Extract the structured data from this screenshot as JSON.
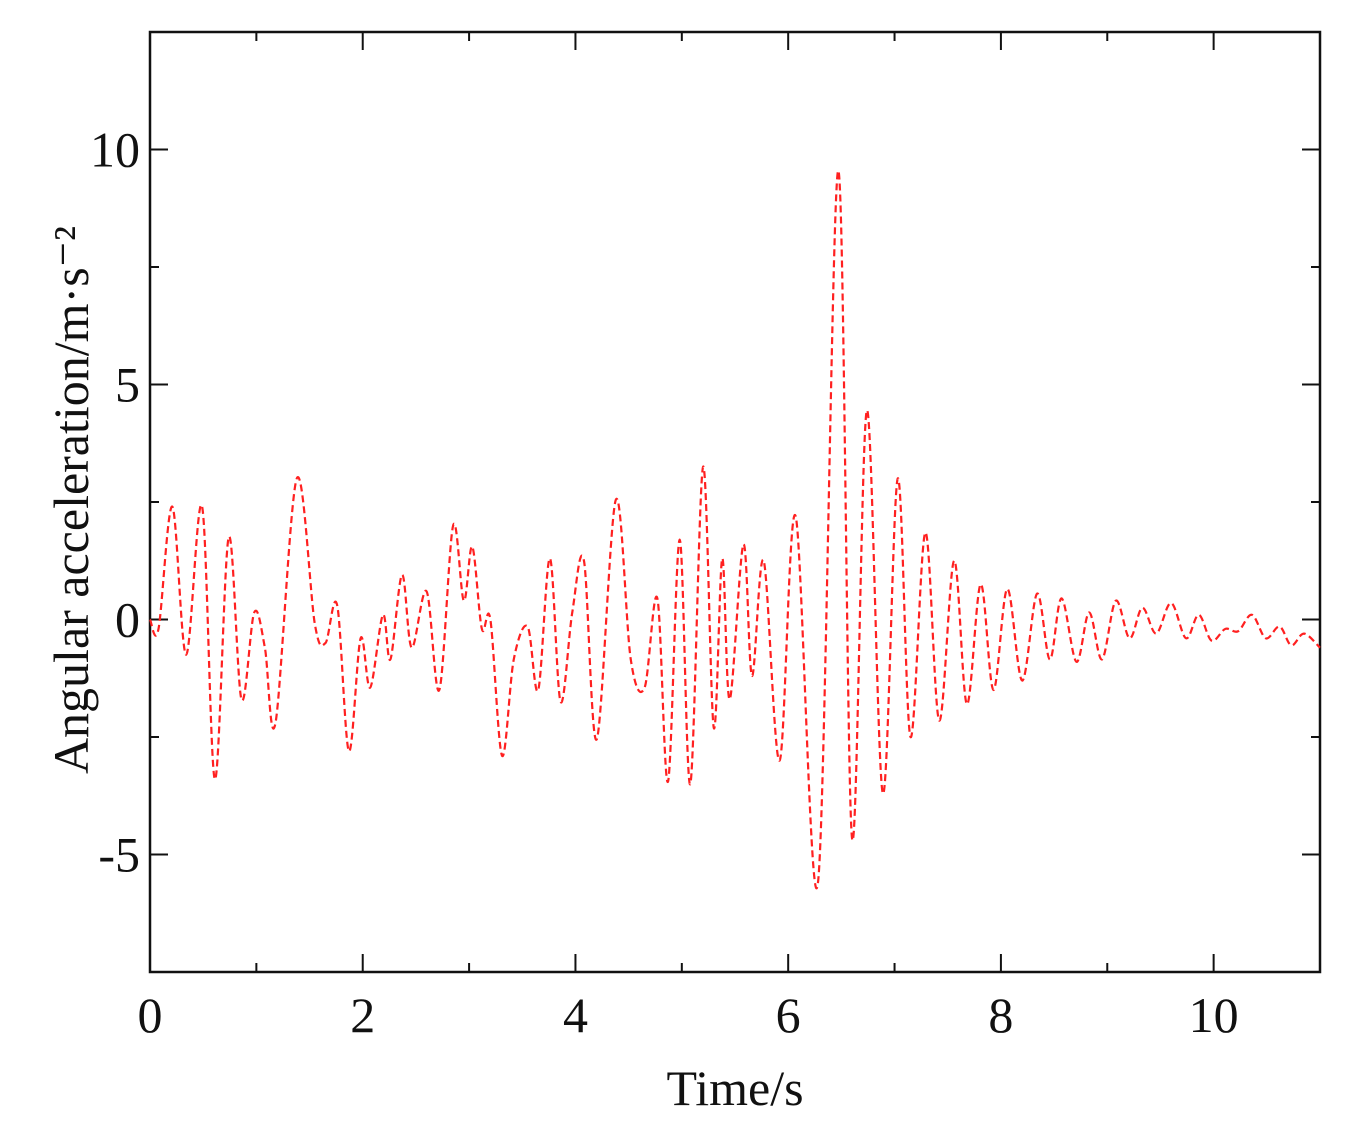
{
  "chart_data": {
    "type": "line",
    "xlabel": "Time/s",
    "ylabel": "Angular acceleration/m·s⁻²",
    "xlim": [
      0,
      11
    ],
    "xticks": [
      0,
      2,
      4,
      6,
      8,
      10
    ],
    "ylim": [
      -7.5,
      12.5
    ],
    "yticks": [
      -5,
      0,
      5,
      10
    ],
    "series": [
      {
        "color": "#ff2020",
        "dashed": true,
        "x": [
          0,
          0.08,
          0.21,
          0.34,
          0.49,
          0.61,
          0.74,
          0.86,
          0.98,
          1.08,
          1.18,
          1.38,
          1.55,
          1.65,
          1.76,
          1.87,
          1.98,
          2.07,
          2.19,
          2.26,
          2.37,
          2.46,
          2.6,
          2.72,
          2.85,
          2.95,
          3.03,
          3.12,
          3.2,
          3.31,
          3.42,
          3.55,
          3.65,
          3.76,
          3.86,
          3.97,
          4.08,
          4.2,
          4.38,
          4.52,
          4.65,
          4.77,
          4.87,
          4.98,
          5.08,
          5.2,
          5.3,
          5.38,
          5.45,
          5.58,
          5.66,
          5.77,
          5.92,
          6.07,
          6.28,
          6.47,
          6.6,
          6.74,
          6.89,
          7.03,
          7.15,
          7.29,
          7.42,
          7.56,
          7.68,
          7.81,
          7.93,
          8.06,
          8.2,
          8.34,
          8.46,
          8.57,
          8.71,
          8.83,
          8.95,
          9.08,
          9.21,
          9.33,
          9.46,
          9.6,
          9.74,
          9.86,
          9.98,
          10.11,
          10.23,
          10.36,
          10.49,
          10.62,
          10.73,
          10.85,
          11
        ],
        "values": [
          0,
          -0.2,
          2.4,
          -0.75,
          2.4,
          -3.4,
          1.75,
          -1.7,
          0.15,
          -0.6,
          -2.2,
          3.0,
          -0.1,
          -0.5,
          0.3,
          -2.8,
          -0.4,
          -1.45,
          0.1,
          -0.85,
          0.95,
          -0.6,
          0.6,
          -1.5,
          2.0,
          0.4,
          1.55,
          -0.2,
          0,
          -2.9,
          -0.85,
          -0.15,
          -1.5,
          1.3,
          -1.75,
          0.15,
          1.25,
          -2.55,
          2.55,
          -0.85,
          -1.45,
          0.45,
          -3.45,
          1.7,
          -3.5,
          3.25,
          -2.3,
          1.3,
          -1.7,
          1.6,
          -1.2,
          1.25,
          -3.0,
          2.2,
          -5.6,
          9.55,
          -4.65,
          4.45,
          -3.7,
          3.0,
          -2.5,
          1.85,
          -2.15,
          1.25,
          -1.8,
          0.75,
          -1.5,
          0.65,
          -1.3,
          0.55,
          -0.85,
          0.45,
          -0.9,
          0.15,
          -0.85,
          0.4,
          -0.4,
          0.25,
          -0.3,
          0.35,
          -0.4,
          0.1,
          -0.45,
          -0.2,
          -0.25,
          0.1,
          -0.4,
          -0.15,
          -0.55,
          -0.3,
          -0.6
        ]
      }
    ]
  }
}
